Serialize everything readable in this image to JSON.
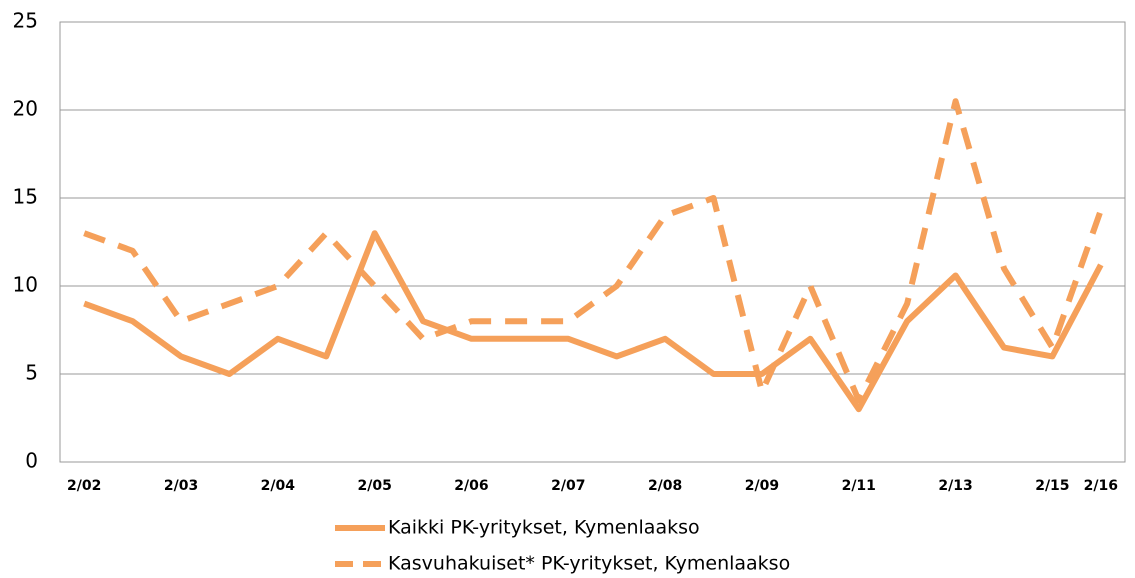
{
  "chart_data": {
    "type": "line",
    "categories": [
      "2/02",
      null,
      "2/03",
      null,
      "2/04",
      null,
      "2/05",
      null,
      "2/06",
      null,
      "2/07",
      null,
      "2/08",
      null,
      "2/09",
      null,
      "2/11",
      null,
      "2/13",
      null,
      "2/15",
      "2/16"
    ],
    "series": [
      {
        "name": "Kaikki PK-yritykset, Kymenlaakso",
        "color": "#f5a05a",
        "dash": false,
        "values": [
          9,
          8,
          6,
          5,
          7,
          6,
          13,
          8,
          7,
          7,
          7,
          6,
          7,
          5,
          5,
          7,
          3,
          8,
          10.6,
          6.5,
          6,
          11.2
        ]
      },
      {
        "name": "Kasvuhakuiset* PK-yritykset, Kymenlaakso",
        "color": "#f5a05a",
        "dash": true,
        "values": [
          13,
          12,
          8,
          9,
          10,
          13,
          10,
          7,
          8,
          8,
          8,
          10,
          14,
          15,
          4,
          10,
          3.5,
          9,
          20.5,
          11,
          6.5,
          14.3
        ]
      }
    ],
    "ylim": [
      0,
      25
    ],
    "yticks": [
      0,
      5,
      10,
      15,
      20,
      25
    ],
    "grid": true,
    "legend": "bottom"
  }
}
